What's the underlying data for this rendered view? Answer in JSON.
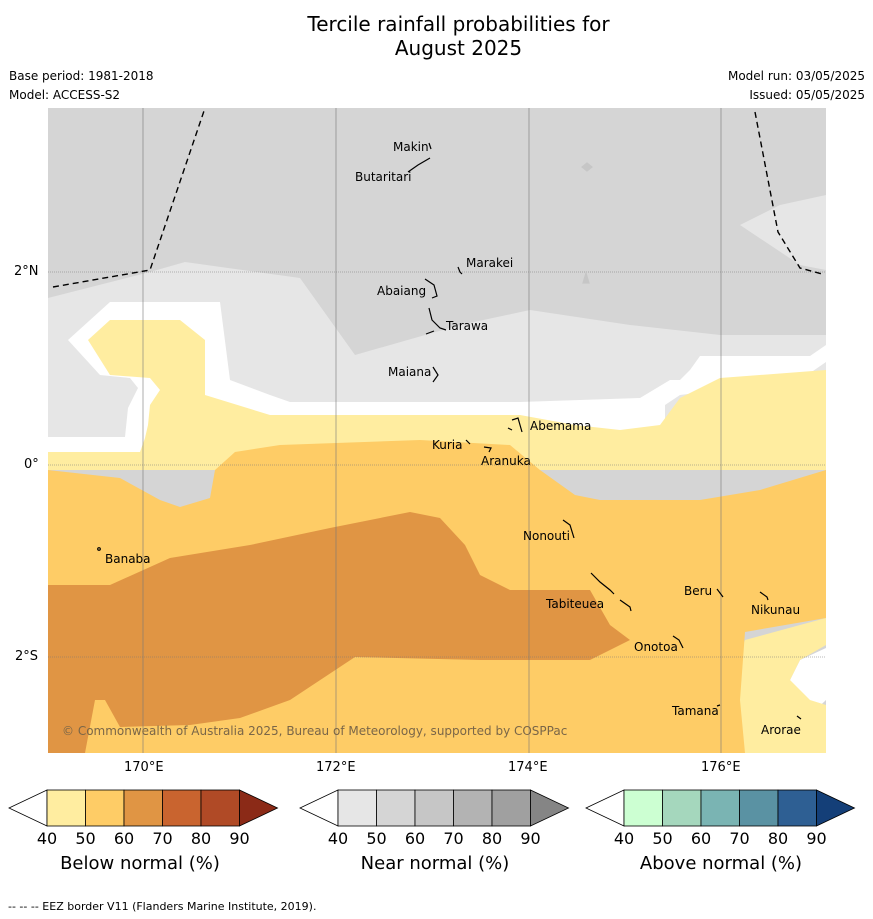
{
  "title_line1": "Tercile rainfall probabilities for",
  "title_line2": "August 2025",
  "base_period": "Base period: 1981-2018",
  "model": "Model: ACCESS-S2",
  "model_run": "Model run: 03/05/2025",
  "issued": "Issued: 05/05/2025",
  "copyright": "© Commonwealth of Australia 2025, Bureau of Meteorology, supported by COSPPac",
  "footnote": "--  --  -- EEZ border V11 (Flanders Marine Institute, 2019).",
  "axes": {
    "lon_labels": [
      "170°E",
      "172°E",
      "174°E",
      "176°E"
    ],
    "lat_labels": [
      "2°N",
      "0°",
      "2°S"
    ],
    "lon_range": [
      169.0,
      177.1
    ],
    "lat_range": [
      -3.0,
      3.4
    ]
  },
  "islands": [
    {
      "name": "Makin",
      "lon": 172.9,
      "lat": 3.25
    },
    {
      "name": "Butaritari",
      "lon": 172.8,
      "lat": 3.0
    },
    {
      "name": "Marakei",
      "lon": 173.3,
      "lat": 1.9
    },
    {
      "name": "Abaiang",
      "lon": 172.95,
      "lat": 1.8
    },
    {
      "name": "Tarawa",
      "lon": 173.0,
      "lat": 1.45
    },
    {
      "name": "Maiana",
      "lon": 173.0,
      "lat": 0.92
    },
    {
      "name": "Abemama",
      "lon": 173.85,
      "lat": 0.4
    },
    {
      "name": "Kuria",
      "lon": 173.4,
      "lat": 0.22
    },
    {
      "name": "Aranuka",
      "lon": 173.6,
      "lat": 0.18
    },
    {
      "name": "Banaba",
      "lon": 169.5,
      "lat": -0.88
    },
    {
      "name": "Nonouti",
      "lon": 174.4,
      "lat": -0.65
    },
    {
      "name": "Tabiteuea",
      "lon": 174.85,
      "lat": -1.35
    },
    {
      "name": "Beru",
      "lon": 176.0,
      "lat": -1.33
    },
    {
      "name": "Nikunau",
      "lon": 176.45,
      "lat": -1.37
    },
    {
      "name": "Onotoa",
      "lon": 175.55,
      "lat": -1.8
    },
    {
      "name": "Tamana",
      "lon": 175.97,
      "lat": -2.5
    },
    {
      "name": "Arorae",
      "lon": 176.8,
      "lat": -2.63
    }
  ],
  "colorbars": [
    {
      "label": "Below normal (%)",
      "ticks": [
        "40",
        "50",
        "60",
        "70",
        "80",
        "90"
      ],
      "colors": [
        "#ffffff",
        "#ffeda0",
        "#fecc66",
        "#e09544",
        "#c9642f",
        "#b04a26",
        "#8b2a17"
      ]
    },
    {
      "label": "Near normal (%)",
      "ticks": [
        "40",
        "50",
        "60",
        "70",
        "80",
        "90"
      ],
      "colors": [
        "#ffffff",
        "#e6e6e6",
        "#d5d5d5",
        "#c6c6c6",
        "#b3b3b3",
        "#a0a0a0",
        "#858585"
      ]
    },
    {
      "label": "Above normal (%)",
      "ticks": [
        "40",
        "50",
        "60",
        "70",
        "80",
        "90"
      ],
      "colors": [
        "#ffffff",
        "#ccffd2",
        "#a5d7bd",
        "#7ab4b3",
        "#5a92a3",
        "#2e5f93",
        "#143f78"
      ]
    }
  ],
  "map_colors": {
    "near_50": "#e6e6e6",
    "near_60": "#d5d5d5",
    "below_50": "#ffeda0",
    "below_60": "#fecc66",
    "below_70": "#e09544"
  }
}
